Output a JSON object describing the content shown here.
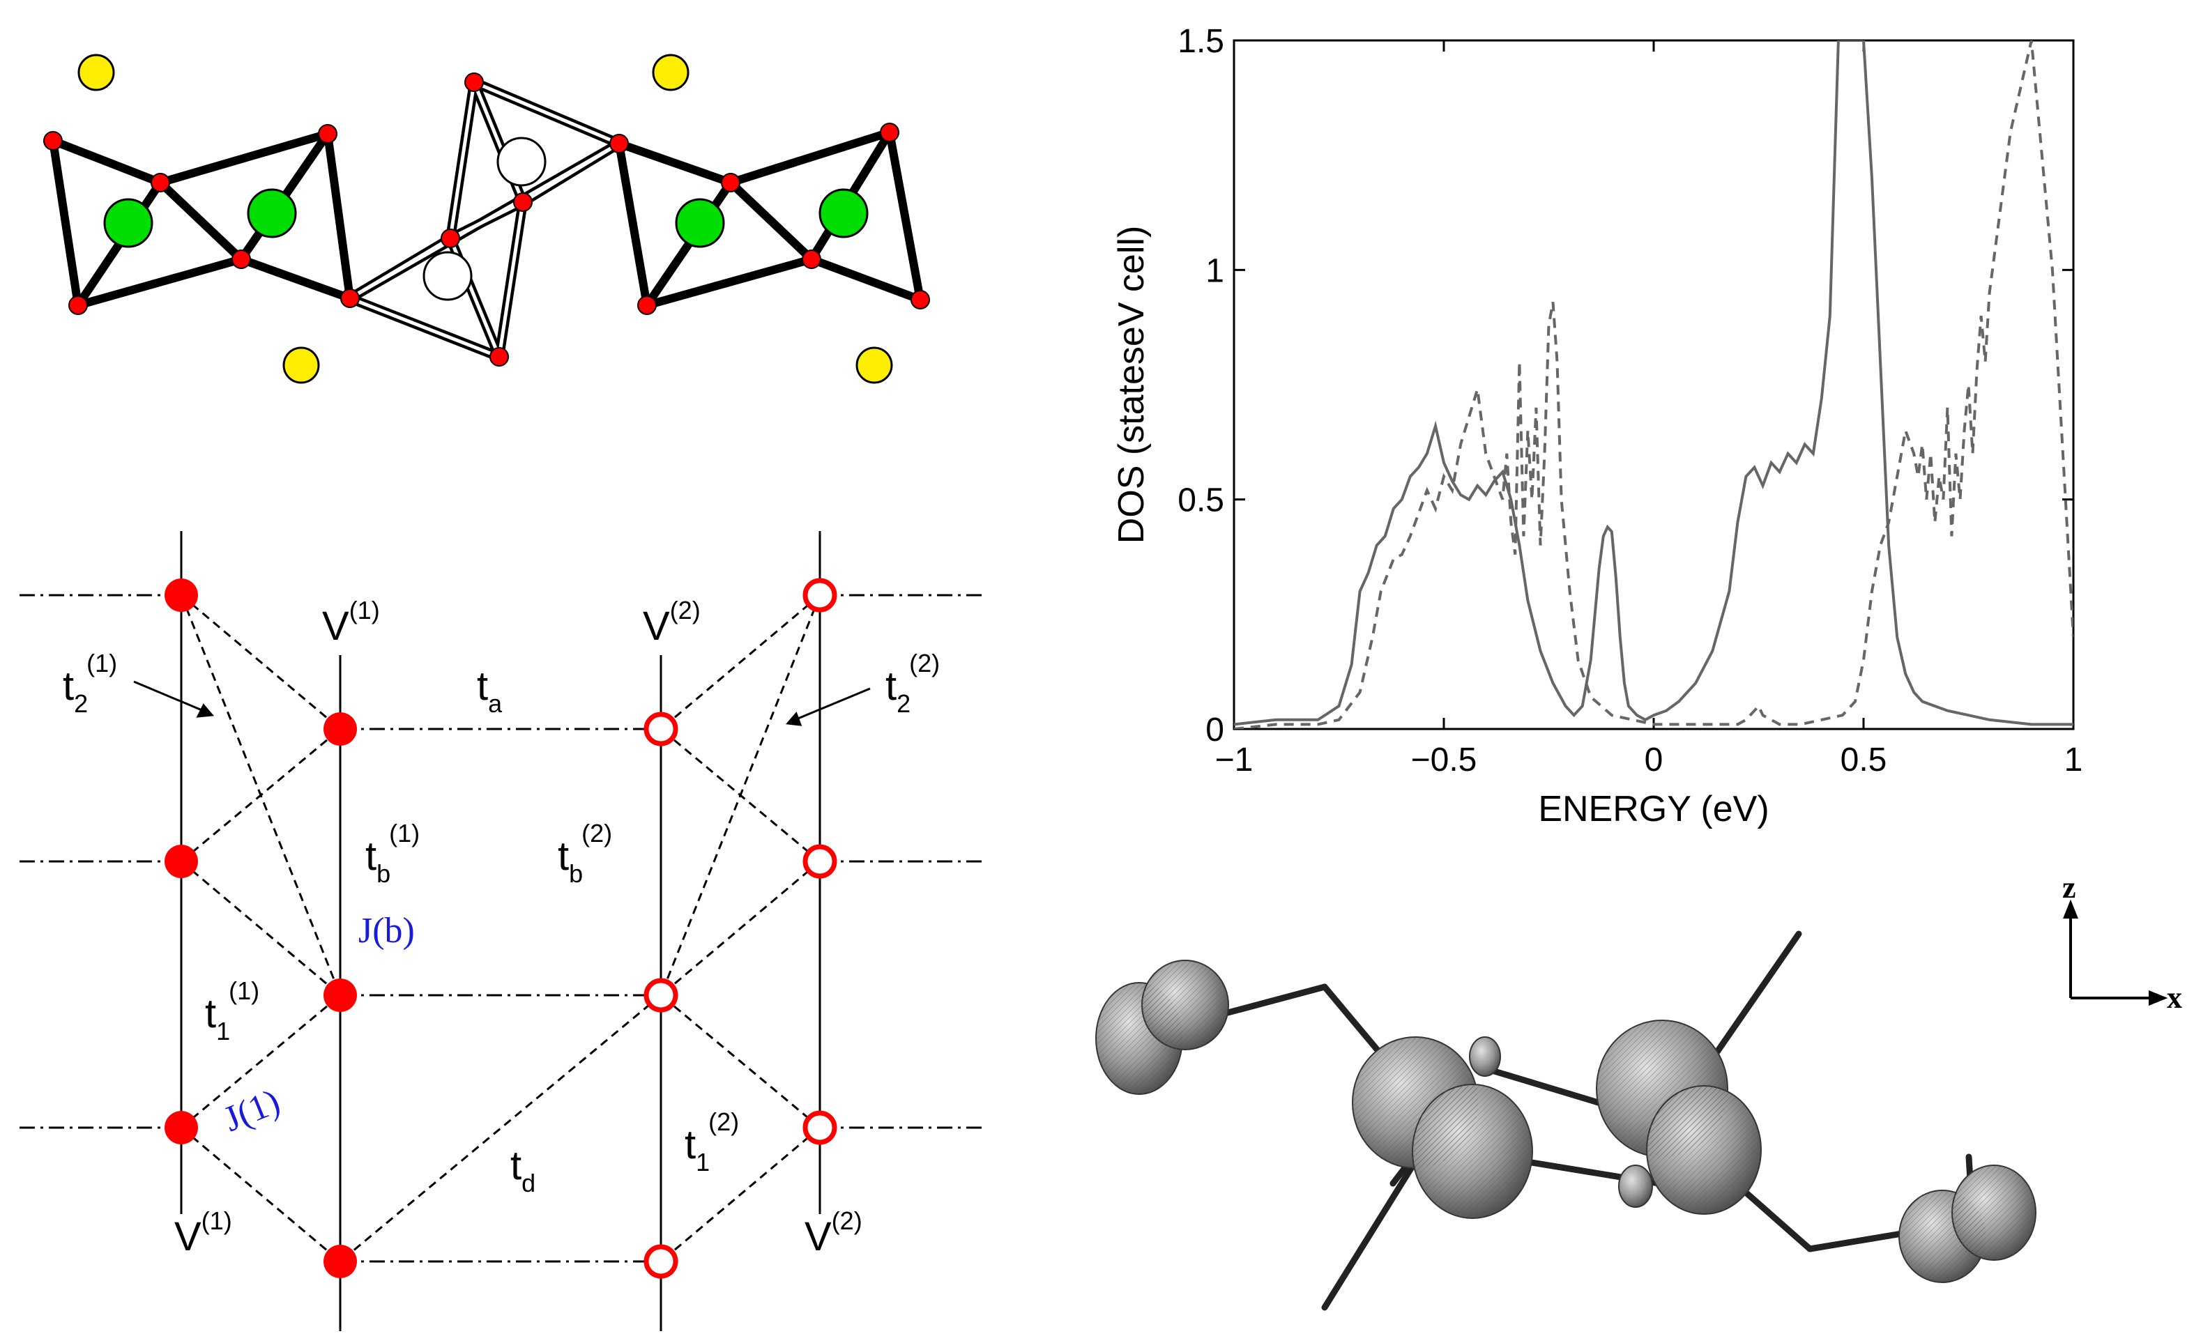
{
  "panels": {
    "lattice": {
      "v1_label": "V",
      "v1_sup": "(1)",
      "v2_label": "V",
      "v2_sup": "(2)",
      "t2_1": "t",
      "t2_1_sub": "2",
      "t2_1_sup": "(1)",
      "t2_2": "t",
      "t2_2_sub": "2",
      "t2_2_sup": "(2)",
      "ta": "t",
      "ta_sub": "a",
      "tb1": "t",
      "tb1_sub": "b",
      "tb1_sup": "(1)",
      "tb2": "t",
      "tb2_sub": "b",
      "tb2_sup": "(2)",
      "jb": "J(b)",
      "t1_1": "t",
      "t1_1_sub": "1",
      "t1_1_sup": "(1)",
      "j1": "J(1)",
      "t1_2": "t",
      "t1_2_sub": "1",
      "t1_2_sup": "(2)",
      "td": "t",
      "td_sub": "d",
      "filled_color": "#ff0000",
      "open_color": "#ff0000",
      "j_color": "#1a1adb"
    },
    "orbital": {
      "axis_z": "z",
      "axis_x": "x"
    }
  },
  "colors": {
    "oxygen": "#ff0000",
    "v_site_a": "#00dd00",
    "v_site_b": "#ffffff",
    "cation": "#ffee00",
    "curve": "#666666"
  },
  "chart_data": {
    "type": "line",
    "xlabel": "ENERGY (eV)",
    "ylabel": "DOS (stateseV cell)",
    "xlim": [
      -1,
      1
    ],
    "ylim": [
      0,
      1.5
    ],
    "xticks": [
      "-1",
      "-0.5",
      "0",
      "0.5",
      "1"
    ],
    "yticks": [
      "0",
      "0.5",
      "1",
      "1.5"
    ],
    "series": [
      {
        "name": "solid",
        "style": "solid",
        "x": [
          -1.0,
          -0.9,
          -0.8,
          -0.75,
          -0.72,
          -0.7,
          -0.68,
          -0.66,
          -0.64,
          -0.62,
          -0.6,
          -0.58,
          -0.56,
          -0.54,
          -0.52,
          -0.5,
          -0.48,
          -0.46,
          -0.44,
          -0.42,
          -0.4,
          -0.38,
          -0.36,
          -0.34,
          -0.32,
          -0.3,
          -0.27,
          -0.24,
          -0.21,
          -0.19,
          -0.17,
          -0.15,
          -0.13,
          -0.12,
          -0.11,
          -0.1,
          -0.09,
          -0.08,
          -0.07,
          -0.06,
          -0.04,
          -0.02,
          0.0,
          0.03,
          0.06,
          0.1,
          0.14,
          0.18,
          0.2,
          0.22,
          0.24,
          0.26,
          0.28,
          0.3,
          0.32,
          0.34,
          0.36,
          0.38,
          0.4,
          0.42,
          0.44,
          0.5,
          0.52,
          0.54,
          0.56,
          0.58,
          0.6,
          0.62,
          0.64,
          0.67,
          0.7,
          0.75,
          0.8,
          0.9,
          1.0
        ],
        "y": [
          0.01,
          0.02,
          0.02,
          0.05,
          0.14,
          0.3,
          0.34,
          0.4,
          0.42,
          0.48,
          0.5,
          0.55,
          0.57,
          0.6,
          0.66,
          0.58,
          0.54,
          0.51,
          0.5,
          0.53,
          0.51,
          0.54,
          0.56,
          0.5,
          0.4,
          0.28,
          0.17,
          0.1,
          0.05,
          0.03,
          0.05,
          0.15,
          0.35,
          0.42,
          0.44,
          0.43,
          0.33,
          0.2,
          0.1,
          0.05,
          0.03,
          0.02,
          0.03,
          0.04,
          0.06,
          0.1,
          0.17,
          0.3,
          0.45,
          0.55,
          0.57,
          0.53,
          0.58,
          0.56,
          0.6,
          0.58,
          0.62,
          0.6,
          0.72,
          0.9,
          1.5,
          1.5,
          1.2,
          0.8,
          0.4,
          0.2,
          0.12,
          0.08,
          0.06,
          0.05,
          0.04,
          0.03,
          0.02,
          0.01,
          0.01
        ]
      },
      {
        "name": "dashed",
        "style": "dashed",
        "x": [
          -1.0,
          -0.9,
          -0.8,
          -0.75,
          -0.7,
          -0.67,
          -0.65,
          -0.62,
          -0.6,
          -0.58,
          -0.56,
          -0.54,
          -0.52,
          -0.5,
          -0.48,
          -0.46,
          -0.44,
          -0.42,
          -0.4,
          -0.38,
          -0.36,
          -0.35,
          -0.34,
          -0.33,
          -0.32,
          -0.31,
          -0.3,
          -0.29,
          -0.28,
          -0.27,
          -0.26,
          -0.25,
          -0.24,
          -0.23,
          -0.22,
          -0.2,
          -0.18,
          -0.15,
          -0.1,
          0.0,
          0.1,
          0.2,
          0.22,
          0.24,
          0.25,
          0.26,
          0.28,
          0.3,
          0.35,
          0.4,
          0.45,
          0.48,
          0.5,
          0.52,
          0.54,
          0.56,
          0.58,
          0.6,
          0.62,
          0.63,
          0.64,
          0.65,
          0.66,
          0.67,
          0.68,
          0.69,
          0.7,
          0.71,
          0.72,
          0.73,
          0.74,
          0.75,
          0.76,
          0.77,
          0.78,
          0.79,
          0.8,
          0.85,
          0.9,
          0.95,
          1.0
        ],
        "y": [
          0.0,
          0.01,
          0.01,
          0.02,
          0.08,
          0.2,
          0.3,
          0.37,
          0.38,
          0.42,
          0.47,
          0.52,
          0.48,
          0.55,
          0.52,
          0.62,
          0.68,
          0.74,
          0.6,
          0.55,
          0.5,
          0.6,
          0.45,
          0.38,
          0.8,
          0.42,
          0.65,
          0.5,
          0.7,
          0.4,
          0.6,
          0.88,
          0.93,
          0.8,
          0.5,
          0.3,
          0.15,
          0.07,
          0.03,
          0.01,
          0.01,
          0.01,
          0.02,
          0.04,
          0.05,
          0.03,
          0.02,
          0.01,
          0.01,
          0.02,
          0.03,
          0.06,
          0.15,
          0.3,
          0.4,
          0.45,
          0.55,
          0.65,
          0.6,
          0.55,
          0.62,
          0.5,
          0.6,
          0.45,
          0.55,
          0.5,
          0.7,
          0.42,
          0.6,
          0.5,
          0.65,
          0.75,
          0.6,
          0.78,
          0.9,
          0.8,
          0.95,
          1.3,
          1.5,
          1.0,
          0.2
        ]
      }
    ]
  }
}
